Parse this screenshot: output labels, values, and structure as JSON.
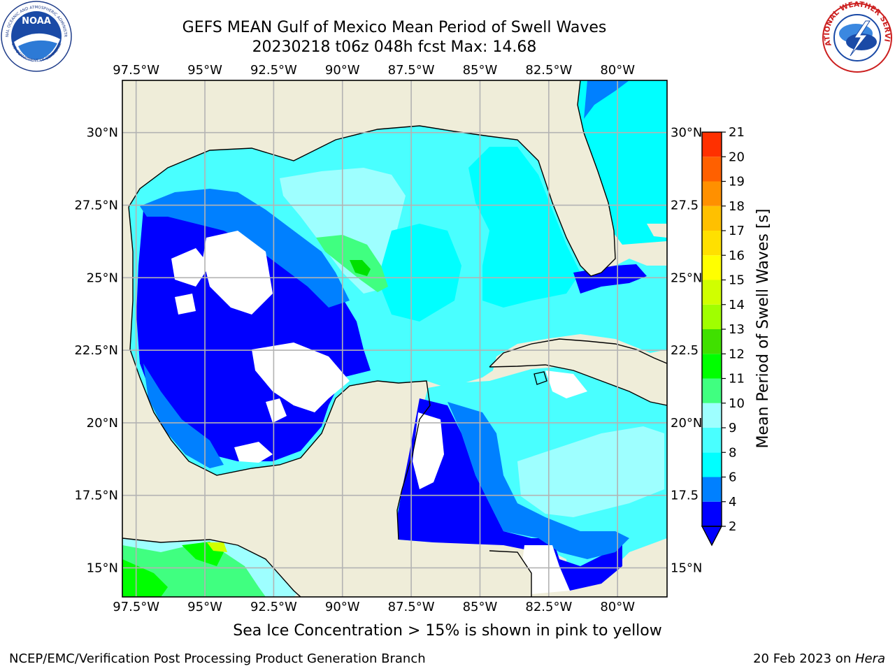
{
  "title": {
    "line1": "GEFS MEAN Gulf of Mexico Mean Period of Swell Waves",
    "line2": "20230218 t06z 048h fcst   Max: 14.68"
  },
  "map": {
    "lon_labels": [
      "97.5°W",
      "95°W",
      "92.5°W",
      "90°W",
      "87.5°W",
      "85°W",
      "82.5°W",
      "80°W"
    ],
    "lon_values": [
      -97.5,
      -95,
      -92.5,
      -90,
      -87.5,
      -85,
      -82.5,
      -80
    ],
    "lat_labels_left": [
      "30°N",
      "27.5°N",
      "25°N",
      "22.5°N",
      "20°N",
      "17.5°N",
      "15°N"
    ],
    "lat_labels_right": [
      "30°N",
      "27.5",
      "25°N",
      "22.5",
      "20°N",
      "17.5",
      "15°N"
    ],
    "lat_values": [
      30,
      27.5,
      25,
      22.5,
      20,
      17.5,
      15
    ],
    "lon_range": [
      -98,
      -78.2
    ],
    "lat_range": [
      14,
      31.8
    ],
    "grid": true,
    "land_color": "#efedd9",
    "grid_color": "#b3b3b3"
  },
  "colorbar": {
    "label": "Mean Period of Swell Waves [s]",
    "ticks": [
      "2",
      "4",
      "6",
      "8",
      "9",
      "10",
      "11",
      "12",
      "13",
      "14",
      "15",
      "16",
      "17",
      "18",
      "19",
      "20",
      "21"
    ],
    "colors": [
      "#0000ff",
      "#0080ff",
      "#00ffff",
      "#49ffff",
      "#9effff",
      "#40ff80",
      "#00ff00",
      "#40e000",
      "#a0ff00",
      "#d0ff00",
      "#ffff00",
      "#ffe000",
      "#ffc000",
      "#ff9000",
      "#ff6000",
      "#ff3000",
      "#ff0000"
    ],
    "under_color": "#0000ff"
  },
  "bottom_note": "Sea Ice Concentration > 15% is shown in pink to yellow",
  "footer": {
    "left": "NCEP/EMC/Verification Post Processing Product Generation Branch",
    "right_prefix": "20 Feb 2023 on ",
    "right_host": "Hera"
  },
  "logos": {
    "noaa_text": "NOAA",
    "noaa_ring": "NATIONAL OCEANIC AND ATMOSPHERIC ADMINISTRATION",
    "noaa_ring_bottom": "U.S. DEPARTMENT OF COMMERCE",
    "nws_ring": "NATIONAL WEATHER SERVICE"
  }
}
